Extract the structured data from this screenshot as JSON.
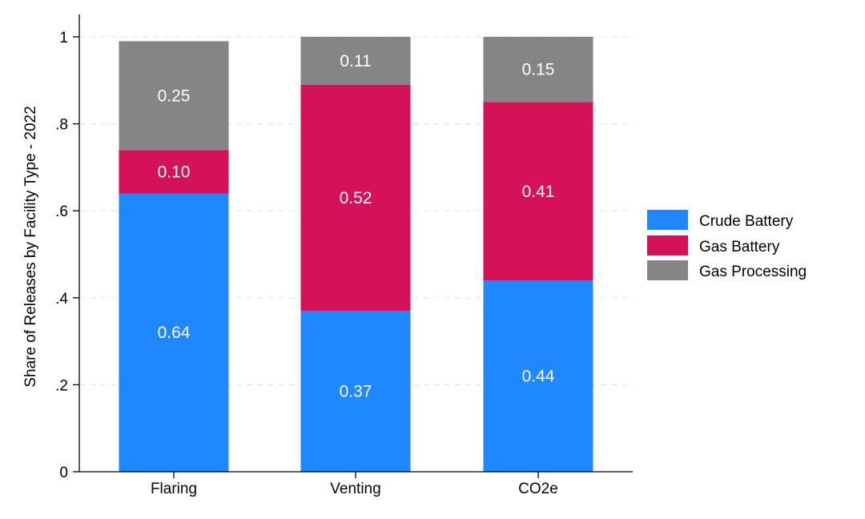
{
  "chart_data": {
    "type": "bar",
    "stacked": true,
    "categories": [
      "Flaring",
      "Venting",
      "CO2e"
    ],
    "series": [
      {
        "name": "Crude Battery",
        "color": "#1f87ff",
        "values": [
          0.64,
          0.37,
          0.44
        ],
        "labels": [
          "0.64",
          "0.37",
          "0.44"
        ]
      },
      {
        "name": "Gas Battery",
        "color": "#d51257",
        "values": [
          0.1,
          0.52,
          0.41
        ],
        "labels": [
          "0.10",
          "0.52",
          "0.41"
        ]
      },
      {
        "name": "Gas Processing",
        "color": "#858585",
        "values": [
          0.25,
          0.11,
          0.15
        ],
        "labels": [
          "0.25",
          "0.11",
          "0.15"
        ]
      }
    ],
    "title": "",
    "xlabel": "",
    "ylabel": "Share of Releases by Facility Type - 2022",
    "ylim": [
      0,
      1
    ],
    "yticks": [
      0,
      0.2,
      0.4,
      0.6,
      0.8,
      1
    ],
    "ytick_labels": [
      "0",
      ".2",
      ".4",
      ".6",
      ".8",
      "1"
    ],
    "grid": true,
    "legend_position": "right"
  }
}
